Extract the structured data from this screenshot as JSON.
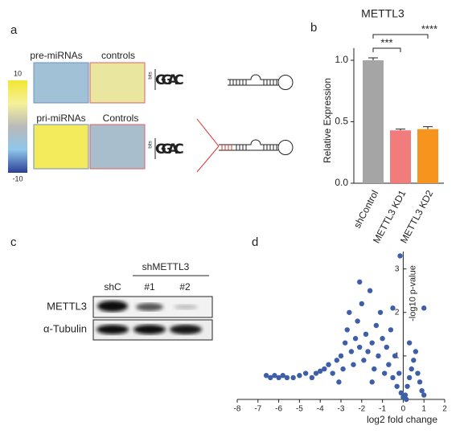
{
  "labels": [
    "a",
    "b",
    "c",
    "d"
  ],
  "figure_a": {
    "top_labels": [
      "pre-miRNAs",
      "controls"
    ],
    "bottom_labels": [
      "pri-miRNAs",
      "Controls"
    ],
    "top_values": [
      -3,
      4
    ],
    "bottom_values": [
      8,
      -2
    ],
    "colorbar": {
      "lim": [
        -10,
        10
      ],
      "ticks": [
        10,
        -10
      ],
      "colors": [
        "#2c3f97",
        "#8fc6ea",
        "#b9b9b9",
        "#f5f19a",
        "#f2e632"
      ]
    },
    "logo_axis": "bits",
    "logo_letters": [
      "G",
      "G",
      "A",
      "C"
    ],
    "logo_colors": [
      "#f5a623",
      "#f5a623",
      "#3aa040",
      "#3a5fc8"
    ]
  },
  "figure_c": {
    "group_label": "shMETTL3",
    "lanes": [
      "shC",
      "#1",
      "#2"
    ],
    "rows": [
      "METTL3",
      "α-Tubulin"
    ]
  },
  "chart_data": [
    {
      "type": "bar",
      "title": "METTL3",
      "y_label": "Relative Expression",
      "categories": [
        "shControl",
        "METTL3 KD1",
        "METTL3 KD2"
      ],
      "values": [
        1.0,
        0.43,
        0.44
      ],
      "errors": [
        0.02,
        0.01,
        0.02
      ],
      "colors": [
        "#a5a5a5",
        "#f07c7c",
        "#f7941d"
      ],
      "ylim": [
        0,
        1.1
      ],
      "yticks": [
        {
          "value": 0,
          "label": "0.0"
        },
        {
          "value": 0.5,
          "label": "0.5"
        },
        {
          "value": 1,
          "label": "1.0"
        }
      ],
      "significance": [
        "***",
        "****"
      ]
    },
    {
      "type": "scatter",
      "x_label": "log2 fold change",
      "y_label": "-log10 p-value",
      "color": "#3f5ea8",
      "xlim": [
        -8,
        2
      ],
      "ylim": [
        0,
        3.4
      ],
      "xticks": [
        -8,
        -7,
        -6,
        -5,
        -4,
        -3,
        -2,
        -1,
        0,
        1,
        2
      ],
      "yticks": [
        1,
        2,
        3
      ],
      "x": [
        -6.6,
        -6.4,
        -6.2,
        -6.0,
        -5.8,
        -5.6,
        -5.3,
        -5.0,
        -4.7,
        -4.4,
        -4.2,
        -4.0,
        -3.8,
        -3.6,
        -3.4,
        -3.2,
        -3.0,
        -2.9,
        -2.8,
        -2.7,
        -2.6,
        -2.5,
        -2.4,
        -2.3,
        -2.2,
        -2.1,
        -2.0,
        -1.9,
        -1.8,
        -1.7,
        -1.6,
        -1.5,
        -1.4,
        -1.3,
        -1.2,
        -1.1,
        -1.0,
        -0.9,
        -0.8,
        -0.7,
        -0.6,
        -0.5,
        -0.4,
        -0.3,
        -0.2,
        -0.1,
        0,
        0.1,
        0.2,
        0.3,
        0.4,
        0.5,
        0.6,
        0.7,
        0.8,
        0.9,
        1.0,
        0.3,
        -0.15,
        1.0,
        -0.5,
        -2.1,
        -3.1,
        -1.5,
        0.15
      ],
      "y": [
        0.55,
        0.5,
        0.55,
        0.5,
        0.55,
        0.5,
        0.5,
        0.55,
        0.6,
        0.5,
        0.6,
        0.65,
        0.7,
        0.8,
        0.6,
        0.9,
        1.0,
        0.7,
        1.3,
        1.6,
        2.0,
        1.1,
        0.8,
        1.4,
        1.8,
        1.2,
        2.2,
        0.9,
        1.5,
        1.1,
        2.5,
        1.3,
        0.7,
        1.7,
        1.0,
        2.0,
        1.4,
        0.6,
        1.2,
        0.8,
        1.6,
        0.5,
        1.0,
        0.3,
        0.6,
        0.15,
        0.05,
        0.1,
        0.3,
        0.5,
        0.7,
        0.9,
        1.1,
        0.6,
        0.4,
        0.2,
        0.1,
        1.3,
        3.3,
        2.1,
        2.1,
        2.7,
        0.4,
        0.4,
        0.0
      ]
    }
  ]
}
